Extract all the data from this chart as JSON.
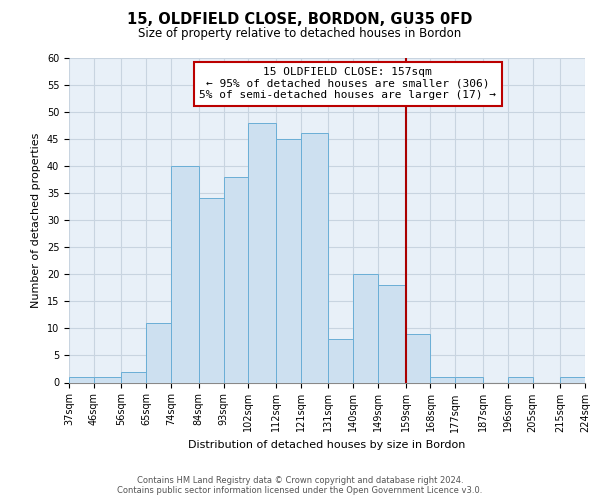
{
  "title": "15, OLDFIELD CLOSE, BORDON, GU35 0FD",
  "subtitle": "Size of property relative to detached houses in Bordon",
  "xlabel": "Distribution of detached houses by size in Bordon",
  "ylabel": "Number of detached properties",
  "bar_edges": [
    37,
    46,
    56,
    65,
    74,
    84,
    93,
    102,
    112,
    121,
    131,
    140,
    149,
    159,
    168,
    177,
    187,
    196,
    205,
    215,
    224
  ],
  "bar_heights": [
    1,
    1,
    2,
    11,
    40,
    34,
    38,
    48,
    45,
    46,
    8,
    20,
    18,
    9,
    1,
    1,
    0,
    1,
    0,
    1
  ],
  "bar_color": "#cde0f0",
  "bar_edge_color": "#6aaed6",
  "vline_x": 159,
  "vline_color": "#aa0000",
  "annotation_title": "15 OLDFIELD CLOSE: 157sqm",
  "annotation_line1": "← 95% of detached houses are smaller (306)",
  "annotation_line2": "5% of semi-detached houses are larger (17) →",
  "annotation_box_facecolor": "#ffffff",
  "annotation_box_edgecolor": "#bb0000",
  "tick_labels": [
    "37sqm",
    "46sqm",
    "56sqm",
    "65sqm",
    "74sqm",
    "84sqm",
    "93sqm",
    "102sqm",
    "112sqm",
    "121sqm",
    "131sqm",
    "140sqm",
    "149sqm",
    "159sqm",
    "168sqm",
    "177sqm",
    "187sqm",
    "196sqm",
    "205sqm",
    "215sqm",
    "224sqm"
  ],
  "ylim": [
    0,
    60
  ],
  "yticks": [
    0,
    5,
    10,
    15,
    20,
    25,
    30,
    35,
    40,
    45,
    50,
    55,
    60
  ],
  "footer_line1": "Contains HM Land Registry data © Crown copyright and database right 2024.",
  "footer_line2": "Contains public sector information licensed under the Open Government Licence v3.0.",
  "plot_bg_color": "#e8f0f8",
  "fig_bg_color": "#ffffff",
  "grid_color": "#c8d4e0",
  "annotation_fontsize": 8.0,
  "title_fontsize": 10.5,
  "subtitle_fontsize": 8.5,
  "axis_label_fontsize": 8.0,
  "tick_fontsize": 7.0,
  "footer_fontsize": 6.0
}
